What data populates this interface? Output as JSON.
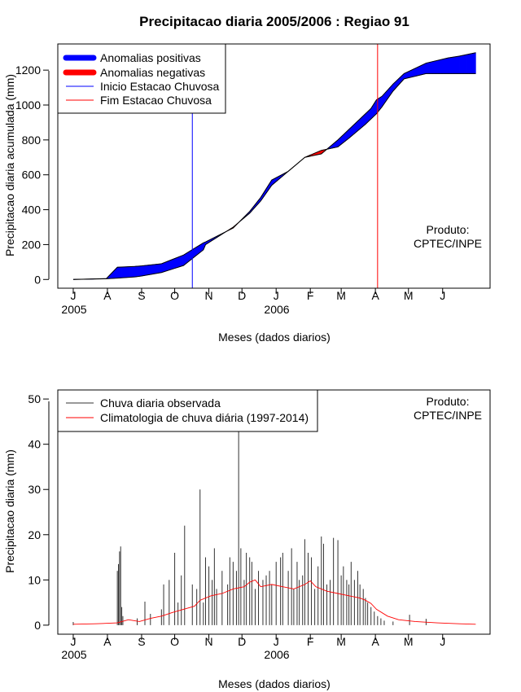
{
  "chart_data": [
    {
      "type": "area",
      "title": "Precipitacao diaria 2005/2006 : Regiao 91",
      "xlabel": "Meses (dados diarios)",
      "ylabel": "Precipitacao diaria acumulada (mm)",
      "ylim": [
        -50,
        1350
      ],
      "yticks": [
        0,
        200,
        400,
        600,
        800,
        1000,
        1200
      ],
      "month_ticks": [
        "J",
        "A",
        "S",
        "O",
        "N",
        "D",
        "J",
        "F",
        "M",
        "A",
        "M",
        "J"
      ],
      "year_labels": [
        "2005",
        "2006"
      ],
      "x_unit": "day index (0 = 1 Jul 2005)",
      "xlim": [
        -14,
        378
      ],
      "observed_cumulative": {
        "days": [
          0,
          30,
          40,
          56,
          62,
          80,
          90,
          100,
          118,
          120,
          145,
          160,
          170,
          180,
          195,
          210,
          225,
          240,
          250,
          265,
          270,
          275,
          280,
          290,
          300,
          320,
          340,
          350,
          365
        ],
        "values": [
          0,
          5,
          70,
          75,
          78,
          90,
          115,
          140,
          210,
          215,
          295,
          390,
          470,
          570,
          620,
          700,
          720,
          800,
          860,
          950,
          980,
          1030,
          1050,
          1120,
          1180,
          1240,
          1270,
          1280,
          1300
        ]
      },
      "climatology_cumulative": {
        "days": [
          0,
          30,
          40,
          56,
          62,
          80,
          90,
          100,
          118,
          120,
          145,
          160,
          170,
          180,
          195,
          210,
          225,
          240,
          250,
          265,
          270,
          275,
          280,
          290,
          300,
          320,
          340,
          350,
          365
        ],
        "values": [
          0,
          4,
          8,
          15,
          20,
          40,
          60,
          80,
          170,
          200,
          300,
          380,
          450,
          540,
          620,
          700,
          740,
          760,
          810,
          890,
          920,
          950,
          990,
          1080,
          1150,
          1180,
          1180,
          1180,
          1180
        ]
      },
      "rainy_season_start_day": 108,
      "rainy_season_end_day": 276,
      "legend": [
        {
          "label": "Anomalias positivas",
          "color": "#0000ff",
          "style": "thick"
        },
        {
          "label": "Anomalias negativas",
          "color": "#ff0000",
          "style": "thick"
        },
        {
          "label": "Inicio Estacao Chuvosa",
          "color": "#0000ff",
          "style": "line"
        },
        {
          "label": "Fim Estacao Chuvosa",
          "color": "#ff0000",
          "style": "line"
        }
      ],
      "legend_position": "top-left",
      "credit": [
        "Produto:",
        "CPTEC/INPE"
      ]
    },
    {
      "type": "bar",
      "xlabel": "Meses (dados diarios)",
      "ylabel": "Precipitacao diaria (mm)",
      "ylim": [
        -2,
        52
      ],
      "yticks": [
        0,
        10,
        20,
        30,
        40,
        50
      ],
      "month_ticks": [
        "J",
        "A",
        "S",
        "O",
        "N",
        "D",
        "J",
        "F",
        "M",
        "A",
        "M",
        "J"
      ],
      "year_labels": [
        "2005",
        "2006"
      ],
      "x_unit": "day index (0 = 1 Jul 2005)",
      "xlim": [
        -14,
        378
      ],
      "observed_daily": {
        "days": [
          0,
          40,
          41,
          42,
          43,
          44,
          45,
          58,
          65,
          70,
          80,
          82,
          87,
          92,
          95,
          98,
          101,
          108,
          112,
          115,
          118,
          120,
          123,
          126,
          128,
          130,
          135,
          140,
          142,
          145,
          148,
          150,
          152,
          155,
          157,
          160,
          162,
          165,
          168,
          172,
          175,
          178,
          180,
          184,
          188,
          190,
          195,
          198,
          200,
          203,
          205,
          208,
          210,
          213,
          216,
          219,
          222,
          225,
          227,
          230,
          233,
          236,
          240,
          243,
          245,
          248,
          250,
          252,
          255,
          258,
          260,
          263,
          265,
          267,
          270,
          273,
          276,
          279,
          282,
          290,
          305,
          320
        ],
        "values": [
          0.7,
          12,
          13.5,
          16.3,
          17.4,
          4,
          2,
          1.5,
          5.2,
          2.5,
          3.5,
          9,
          10,
          16,
          5,
          11,
          22,
          9,
          8,
          30,
          5,
          15,
          13,
          10,
          17,
          8,
          12,
          9,
          15,
          14,
          12,
          45,
          17,
          10,
          16,
          15,
          14,
          8,
          12,
          10,
          11,
          12,
          9,
          14,
          15,
          16,
          12,
          17,
          8,
          14,
          10,
          11,
          19,
          16,
          15,
          8,
          13,
          19.6,
          18,
          9,
          10,
          19.3,
          18.8,
          11,
          13,
          10,
          9,
          14,
          10,
          12,
          9,
          8,
          6,
          5,
          4,
          3,
          2,
          1.5,
          1,
          0.8,
          2.3,
          1.4
        ]
      },
      "climatology_daily": {
        "days": [
          0,
          20,
          40,
          50,
          60,
          70,
          80,
          90,
          100,
          110,
          115,
          125,
          135,
          145,
          155,
          160,
          165,
          170,
          180,
          190,
          200,
          210,
          215,
          220,
          230,
          240,
          250,
          260,
          265,
          270,
          275,
          285,
          295,
          310,
          330,
          350,
          365
        ],
        "values": [
          0.2,
          0.3,
          0.5,
          1.2,
          0.8,
          1.5,
          2,
          2.8,
          3.5,
          4.2,
          5.5,
          6.5,
          7,
          8,
          8.5,
          9.5,
          10,
          8.5,
          9,
          8.5,
          8,
          9,
          9.8,
          8.5,
          7.5,
          7,
          6.5,
          6,
          5.5,
          4.8,
          3.5,
          2,
          1.2,
          0.8,
          0.5,
          0.3,
          0.2
        ]
      },
      "legend": [
        {
          "label": "Chuva diaria observada",
          "color": "#333333",
          "style": "line"
        },
        {
          "label": "Climatologia de chuva diária (1997-2014)",
          "color": "#ff0000",
          "style": "line"
        }
      ],
      "legend_position": "top-left",
      "credit": [
        "Produto:",
        "CPTEC/INPE"
      ]
    }
  ]
}
